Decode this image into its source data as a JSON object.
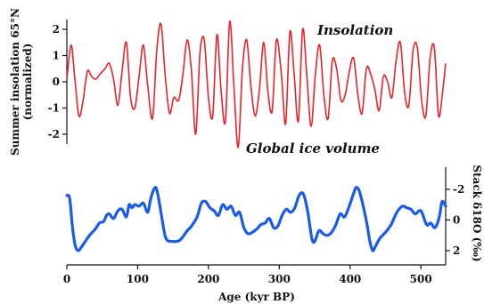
{
  "chart_data": [
    {
      "type": "line",
      "title": "",
      "series_label": "Insolation",
      "ylabel_line1": "Summer insolation 65°N",
      "ylabel_line2": "(normalized)",
      "yticks": [
        "2",
        "1",
        "0",
        "-1",
        "-2"
      ],
      "ytick_values": [
        2,
        1,
        0,
        -1,
        -2
      ],
      "ylim": [
        -2.5,
        2.5
      ],
      "xlim": [
        0,
        535
      ],
      "color": "#e8232a",
      "series": [
        {
          "name": "Insolation",
          "x": [
            0,
            6,
            11,
            17,
            23,
            29,
            35,
            41,
            47,
            54,
            60,
            66,
            72,
            78,
            84,
            90,
            96,
            102,
            108,
            114,
            121,
            127,
            133,
            139,
            145,
            151,
            158,
            164,
            170,
            176,
            182,
            188,
            194,
            200,
            206,
            212,
            218,
            224,
            230,
            236,
            242,
            248,
            254,
            260,
            266,
            272,
            278,
            284,
            290,
            296,
            303,
            309,
            315,
            321,
            327,
            333,
            339,
            345,
            351,
            357,
            363,
            369,
            375,
            381,
            387,
            393,
            399,
            405,
            411,
            417,
            423,
            429,
            435,
            441,
            447,
            453,
            459,
            465,
            471,
            477,
            483,
            489,
            495,
            501,
            507,
            513,
            519,
            525,
            531,
            535
          ],
          "values": [
            0.1,
            1.4,
            0.2,
            -1.3,
            -0.7,
            0.4,
            0.2,
            0.1,
            0.3,
            0.5,
            0.7,
            0.1,
            -0.9,
            0.4,
            1.5,
            -0.6,
            -1.0,
            0.2,
            1.4,
            -0.1,
            -1.4,
            1.2,
            2.2,
            0.2,
            -1.2,
            -0.6,
            -0.7,
            0.3,
            1.6,
            0.4,
            -2.0,
            1.1,
            1.6,
            -0.6,
            -1.3,
            1.8,
            -0.4,
            -1.5,
            2.3,
            -0.2,
            -2.5,
            0.5,
            1.6,
            -0.2,
            -1.3,
            -0.3,
            1.5,
            -0.4,
            -1.1,
            1.6,
            0.3,
            -1.6,
            1.9,
            0.3,
            -1.5,
            2.0,
            0.2,
            -1.7,
            0.3,
            1.4,
            -0.5,
            -1.4,
            0.8,
            0.5,
            -0.7,
            -0.5,
            0.4,
            0.9,
            -0.5,
            -1.2,
            0.5,
            0.3,
            -0.3,
            -1.1,
            0.2,
            0.0,
            -0.6,
            0.8,
            1.5,
            -0.4,
            -0.9,
            1.2,
            1.3,
            -0.7,
            -1.3,
            0.9,
            1.3,
            -1.3,
            -0.3,
            0.7
          ]
        }
      ]
    },
    {
      "type": "line",
      "title": "",
      "series_label": "Global ice volume",
      "xlabel": "Age (kyr BP)",
      "ylabel": "Stack δ18O (‰)",
      "yticks": [
        "-2",
        "0",
        "2"
      ],
      "ytick_values": [
        -2,
        0,
        2
      ],
      "ylim_top": -2.4,
      "ylim_bottom": 2.4,
      "y_inverted": true,
      "xticks": [
        "0",
        "100",
        "200",
        "300",
        "400",
        "500"
      ],
      "xtick_values": [
        0,
        100,
        200,
        300,
        400,
        500
      ],
      "xlim": [
        0,
        535
      ],
      "color": "#1a5bea",
      "series": [
        {
          "name": "Global ice volume",
          "x": [
            0,
            4,
            8,
            12,
            16,
            20,
            26,
            32,
            40,
            46,
            52,
            56,
            60,
            66,
            72,
            78,
            84,
            88,
            92,
            96,
            102,
            108,
            114,
            118,
            122,
            126,
            130,
            134,
            140,
            150,
            160,
            170,
            176,
            184,
            190,
            196,
            202,
            208,
            214,
            220,
            226,
            232,
            238,
            244,
            250,
            256,
            262,
            268,
            274,
            280,
            286,
            292,
            298,
            304,
            310,
            316,
            322,
            328,
            334,
            340,
            346,
            350,
            356,
            362,
            368,
            374,
            380,
            386,
            392,
            398,
            404,
            408,
            412,
            416,
            420,
            424,
            428,
            432,
            436,
            442,
            450,
            458,
            466,
            474,
            480,
            486,
            492,
            500,
            508,
            514,
            520,
            526,
            530,
            535
          ],
          "values": [
            -1.6,
            -1.4,
            0.5,
            1.7,
            2.0,
            1.8,
            1.4,
            1.0,
            0.6,
            0.2,
            0.1,
            -0.3,
            -0.4,
            -0.1,
            -0.6,
            -0.7,
            -0.2,
            -1.0,
            -0.8,
            -1.0,
            -0.9,
            -1.1,
            -0.5,
            -1.3,
            -1.9,
            -2.1,
            -1.3,
            -0.2,
            1.2,
            1.4,
            1.3,
            0.7,
            0.4,
            -0.2,
            -1.1,
            -1.2,
            -0.8,
            -0.6,
            -0.3,
            -1.0,
            -0.7,
            -0.9,
            -0.3,
            -0.5,
            0.5,
            0.9,
            0.8,
            0.6,
            0.3,
            0.2,
            -0.1,
            0.5,
            0.4,
            -0.3,
            -0.7,
            -0.5,
            -0.8,
            -1.6,
            -1.7,
            -0.6,
            1.2,
            1.4,
            0.7,
            0.9,
            1.0,
            0.8,
            0.3,
            -0.4,
            -0.2,
            -0.8,
            -1.6,
            -2.1,
            -2.0,
            -1.4,
            -0.6,
            0.3,
            1.4,
            2.0,
            1.7,
            1.2,
            0.8,
            0.3,
            -0.5,
            -0.9,
            -0.8,
            -0.7,
            -0.4,
            -0.6,
            0.3,
            0.2,
            0.5,
            -0.2,
            -1.2,
            -0.9
          ]
        }
      ]
    }
  ]
}
